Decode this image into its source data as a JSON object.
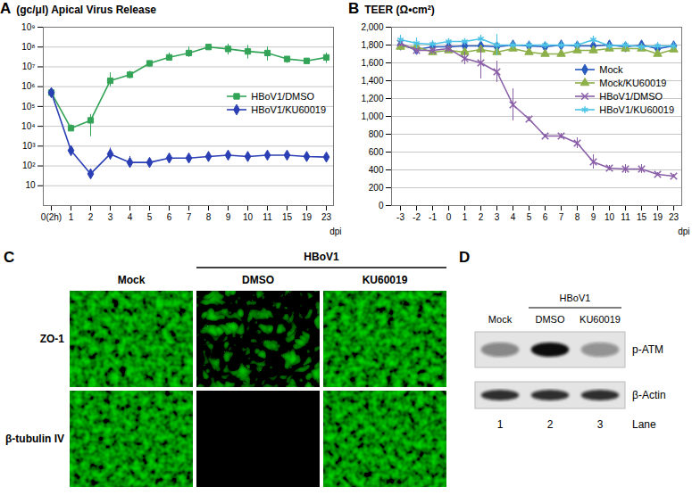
{
  "chart_data": [
    {
      "panel_label": "A",
      "type": "line",
      "title": "(gc/μl) Apical Virus Release",
      "x_label": "dpi",
      "log": "y",
      "grid": true,
      "legend": "right",
      "categories": [
        "0(2h)",
        "1",
        "2",
        "3",
        "4",
        "5",
        "6",
        "7",
        "8",
        "9",
        "10",
        "11",
        "15",
        "19",
        "23"
      ],
      "ylim": [
        1,
        1000000000
      ],
      "yticks": [
        {
          "value": 1000000000,
          "label": "10⁹"
        },
        {
          "value": 100000000,
          "label": "10⁸"
        },
        {
          "value": 10000000,
          "label": "10⁷"
        },
        {
          "value": 1000000,
          "label": "10⁶"
        },
        {
          "value": 100000,
          "label": "10⁵"
        },
        {
          "value": 10000,
          "label": "10⁴"
        },
        {
          "value": 1000,
          "label": "10³"
        },
        {
          "value": 100,
          "label": "10²"
        },
        10
      ],
      "series": [
        {
          "name": "HBoV1/DMSO",
          "color": "#33a457",
          "marker": "square",
          "values": [
            500000,
            8000,
            20000,
            2000000,
            4000000,
            15000000,
            30000000,
            50000000,
            100000000,
            80000000,
            60000000,
            50000000,
            25000000,
            20000000,
            30000000
          ],
          "error_bars": [
            [
              400000,
              600000
            ],
            [
              6000,
              12000
            ],
            [
              3000,
              40000
            ],
            [
              1000000,
              5000000
            ],
            [
              2500000,
              6000000
            ],
            [
              10000000,
              20000000
            ],
            [
              20000000,
              50000000
            ],
            [
              30000000,
              100000000
            ],
            [
              80000000,
              130000000
            ],
            [
              40000000,
              140000000
            ],
            [
              25000000,
              120000000
            ],
            [
              20000000,
              100000000
            ],
            [
              15000000,
              30000000
            ],
            [
              15000000,
              25000000
            ],
            [
              15000000,
              50000000
            ]
          ]
        },
        {
          "name": "HBoV1/KU60019",
          "color": "#2b3fb5",
          "marker": "diamond",
          "values": [
            500000,
            600,
            40,
            400,
            150,
            150,
            250,
            250,
            300,
            350,
            300,
            350,
            350,
            300,
            280
          ],
          "error_bars": [
            [
              400000,
              600000
            ],
            [
              300,
              900
            ],
            [
              30,
              60
            ],
            [
              200,
              800
            ],
            [
              80,
              300
            ],
            [
              100,
              200
            ],
            [
              150,
              350
            ],
            [
              180,
              350
            ],
            [
              200,
              400
            ],
            [
              200,
              600
            ],
            [
              200,
              500
            ],
            [
              250,
              450
            ],
            [
              250,
              450
            ],
            [
              220,
              400
            ],
            [
              200,
              350
            ]
          ]
        }
      ]
    },
    {
      "panel_label": "B",
      "type": "line",
      "title": "TEER (Ω•cm²)",
      "x_label": "dpi",
      "grid": true,
      "legend": "upper right",
      "categories": [
        "-3",
        "-2",
        "-1",
        "0",
        "1",
        "2",
        "3",
        "4",
        "5",
        "6",
        "7",
        "8",
        "9",
        "10",
        "11",
        "15",
        "19",
        "23"
      ],
      "ylim": [
        0,
        2000
      ],
      "yticks": [
        0,
        200,
        400,
        600,
        800,
        {
          "value": 1000,
          "label": "1,000"
        },
        {
          "value": 1200,
          "label": "1,200"
        },
        {
          "value": 1400,
          "label": "1,400"
        },
        {
          "value": 1600,
          "label": "1,600"
        },
        {
          "value": 1800,
          "label": "1,800"
        },
        {
          "value": 2000,
          "label": "2,000"
        }
      ],
      "series": [
        {
          "name": "Mock",
          "color": "#2a5bbf",
          "marker": "diamond",
          "values": [
            1800,
            1750,
            1780,
            1780,
            1790,
            1790,
            1780,
            1800,
            1790,
            1780,
            1800,
            1790,
            1790,
            1800,
            1780,
            1800,
            1760,
            1790
          ],
          "errors": [
            40,
            30,
            30,
            30,
            40,
            30,
            40,
            40,
            30,
            30,
            30,
            40,
            40,
            30,
            30,
            40,
            40,
            30
          ]
        },
        {
          "name": "Mock/KU60019",
          "color": "#8db04a",
          "marker": "triangle",
          "values": [
            1780,
            1780,
            1720,
            1740,
            1720,
            1750,
            1720,
            1760,
            1720,
            1700,
            1700,
            1740,
            1740,
            1760,
            1760,
            1760,
            1700,
            1750
          ],
          "errors": [
            30,
            30,
            30,
            30,
            30,
            30,
            30,
            30,
            30,
            30,
            30,
            30,
            30,
            30,
            30,
            30,
            30,
            30
          ]
        },
        {
          "name": "HBoV1/DMSO",
          "color": "#8b5fa8",
          "marker": "times",
          "values": [
            1820,
            1740,
            1740,
            1760,
            1650,
            1600,
            1500,
            1130,
            970,
            780,
            780,
            700,
            490,
            420,
            410,
            410,
            350,
            330
          ],
          "errors": [
            40,
            50,
            40,
            40,
            70,
            180,
            120,
            180,
            30,
            20,
            30,
            60,
            80,
            30,
            50,
            50,
            20,
            20
          ]
        },
        {
          "name": "HBoV1/KU60019",
          "color": "#4cc3e6",
          "marker": "asterisk",
          "values": [
            1860,
            1820,
            1810,
            1840,
            1840,
            1870,
            1800,
            1800,
            1800,
            1800,
            1800,
            1800,
            1860,
            1790,
            1800,
            1780,
            1790,
            1790
          ],
          "errors": [
            50,
            60,
            40,
            30,
            30,
            40,
            120,
            40,
            40,
            40,
            40,
            40,
            40,
            40,
            40,
            40,
            40,
            40
          ]
        }
      ]
    }
  ],
  "images": {
    "C": {
      "panel_label": "C",
      "group_label": "HBoV1",
      "columns": [
        "Mock",
        "DMSO",
        "KU60019"
      ],
      "group_columns": [
        1,
        2
      ],
      "rows": [
        "ZO-1",
        "β-tubulin IV"
      ],
      "color": "green",
      "signal": [
        [
          true,
          true,
          true
        ],
        [
          true,
          false,
          true
        ]
      ]
    },
    "D": {
      "panel_label": "D",
      "group_label": "HBoV1",
      "lanes": [
        "Mock",
        "DMSO",
        "KU60019"
      ],
      "group_lanes": [
        1,
        2
      ],
      "lane_title": "Lane",
      "lane_numbers": [
        1,
        2,
        3
      ],
      "bands": [
        {
          "name": "p-ATM",
          "intensity": [
            0.45,
            1,
            0.4
          ]
        },
        {
          "name": "β-Actin",
          "intensity": [
            0.85,
            0.85,
            0.85
          ]
        }
      ]
    }
  }
}
